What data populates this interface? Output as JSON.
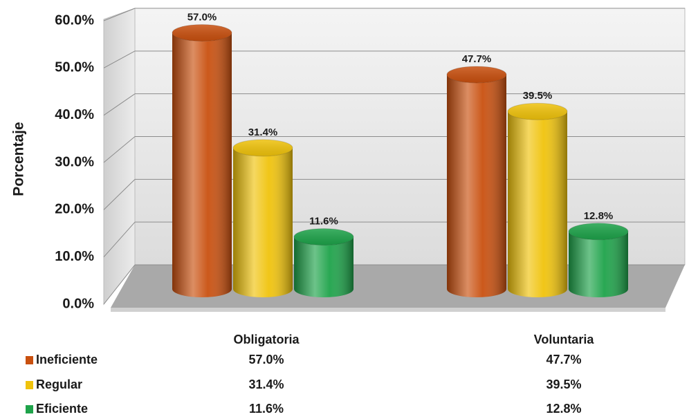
{
  "chart_data": {
    "type": "bar3d",
    "y_axis_label": "Porcentaje",
    "categories": [
      "Obligatoria",
      "Voluntaria"
    ],
    "series": [
      {
        "name": "Ineficiente",
        "color": "#c9500f",
        "values": [
          57.0,
          47.7
        ],
        "value_labels": [
          "57.0%",
          "47.7%"
        ]
      },
      {
        "name": "Regular",
        "color": "#f0c30c",
        "values": [
          31.4,
          39.5
        ],
        "value_labels": [
          "31.4%",
          "39.5%"
        ]
      },
      {
        "name": "Eficiente",
        "color": "#1ea34a",
        "values": [
          11.6,
          12.8
        ],
        "value_labels": [
          "11.6%",
          "12.8%"
        ]
      }
    ],
    "ylim": [
      0,
      60
    ],
    "yticks": [
      {
        "value": 0,
        "label": "0.0%"
      },
      {
        "value": 10,
        "label": "10.0%"
      },
      {
        "value": 20,
        "label": "20.0%"
      },
      {
        "value": 30,
        "label": "30.0%"
      },
      {
        "value": 40,
        "label": "40.0%"
      },
      {
        "value": 50,
        "label": "50.0%"
      },
      {
        "value": 60,
        "label": "60.0%"
      }
    ],
    "grid": true,
    "data_table": true
  }
}
